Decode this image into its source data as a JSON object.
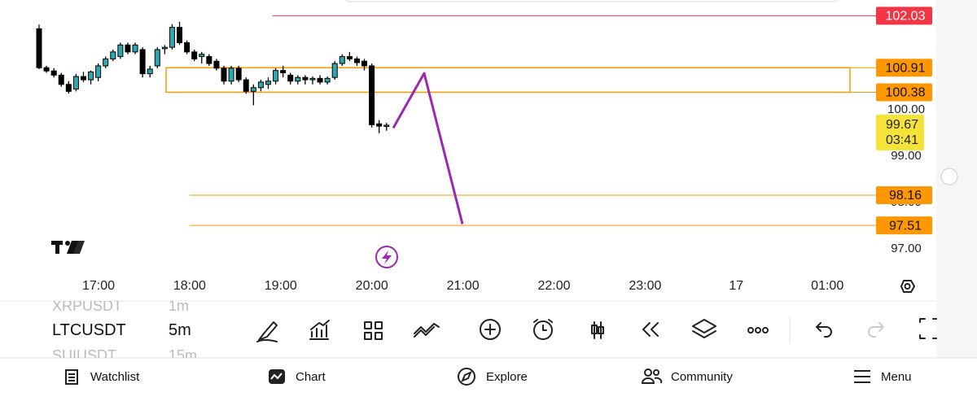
{
  "chart_data": {
    "type": "candlestick",
    "ylim": [
      95.88,
      102.37
    ],
    "yticks": [
      {
        "value": 100,
        "label": "100.00"
      },
      {
        "value": 99,
        "label": "99.00"
      },
      {
        "value": 98,
        "label": "98.00"
      },
      {
        "value": 97,
        "label": "97.00"
      }
    ],
    "x_labels": [
      "17:00",
      "18:00",
      "19:00",
      "20:00",
      "21:00",
      "22:00",
      "23:00",
      "17",
      "01:00"
    ],
    "up_color": "#2aa9b0",
    "down_color": "#000000",
    "open": [
      101.75,
      100.91,
      100.84,
      100.75,
      100.55,
      100.45,
      100.72,
      100.65,
      100.7,
      100.95,
      101.1,
      101.15,
      101.4,
      101.25,
      101.3,
      100.78,
      100.95,
      101.32,
      101.35,
      101.78,
      101.45,
      101.25,
      101.15,
      101.15,
      101.05,
      100.9,
      100.62,
      100.9,
      100.65,
      100.4,
      100.48,
      100.55,
      100.62,
      100.85,
      100.75,
      100.62,
      100.7,
      100.65,
      100.68,
      100.6,
      100.7,
      101.0,
      101.15,
      101.1,
      101.05,
      100.95,
      99.7,
      99.65
    ],
    "high": [
      101.84,
      100.95,
      100.9,
      100.8,
      100.62,
      100.78,
      100.82,
      100.85,
      101.0,
      101.15,
      101.3,
      101.45,
      101.45,
      101.45,
      101.35,
      100.95,
      101.35,
      101.4,
      101.85,
      101.9,
      101.5,
      101.3,
      101.25,
      101.2,
      101.1,
      100.95,
      100.95,
      100.95,
      100.7,
      100.55,
      100.65,
      100.7,
      100.9,
      100.95,
      100.8,
      100.75,
      100.75,
      100.72,
      100.75,
      100.72,
      101.05,
      101.2,
      101.25,
      101.15,
      101.1,
      101.0,
      99.78,
      99.72
    ],
    "low": [
      100.88,
      100.8,
      100.7,
      100.5,
      100.35,
      100.4,
      100.6,
      100.55,
      100.62,
      100.9,
      101.05,
      101.1,
      101.2,
      101.2,
      100.7,
      100.7,
      100.9,
      101.2,
      101.3,
      101.4,
      101.2,
      101.05,
      101.0,
      100.95,
      100.85,
      100.55,
      100.55,
      100.6,
      100.35,
      100.1,
      100.4,
      100.45,
      100.55,
      100.7,
      100.55,
      100.55,
      100.55,
      100.55,
      100.55,
      100.55,
      100.65,
      100.95,
      101.05,
      100.95,
      100.85,
      99.62,
      99.5,
      99.55
    ],
    "close": [
      100.91,
      100.84,
      100.75,
      100.55,
      100.4,
      100.72,
      100.65,
      100.82,
      100.95,
      101.1,
      101.25,
      101.4,
      101.25,
      101.4,
      100.78,
      100.88,
      101.3,
      101.35,
      101.78,
      101.45,
      101.25,
      101.1,
      101.2,
      101.0,
      100.9,
      100.62,
      100.9,
      100.65,
      100.4,
      100.48,
      100.6,
      100.62,
      100.85,
      100.8,
      100.62,
      100.7,
      100.65,
      100.68,
      100.6,
      100.68,
      101.0,
      101.15,
      101.1,
      101.02,
      100.95,
      99.68,
      99.65,
      99.67
    ],
    "levels": [
      {
        "value": 102.03,
        "color": "#f23645"
      },
      {
        "value": 100.91,
        "color": "#ff9800"
      },
      {
        "value": 100.38,
        "color": "#ff9800"
      },
      {
        "value": 98.16,
        "color": "#ff9800"
      },
      {
        "value": 97.51,
        "color": "#ff9800"
      }
    ],
    "last_price": 99.67,
    "countdown": "03:41",
    "last_price_color": "#f5e33a",
    "drawing": {
      "values": [
        99.61,
        100.79,
        97.54
      ],
      "color": "#9c27b0"
    }
  },
  "watchlist": [
    {
      "symbol": "XRPUSDT",
      "interval": "1m"
    },
    {
      "symbol": "LTCUSDT",
      "interval": "5m"
    },
    {
      "symbol": "SUIUSDT",
      "interval": "15m"
    }
  ],
  "nav": [
    "Watchlist",
    "Chart",
    "Explore",
    "Community",
    "Menu"
  ]
}
